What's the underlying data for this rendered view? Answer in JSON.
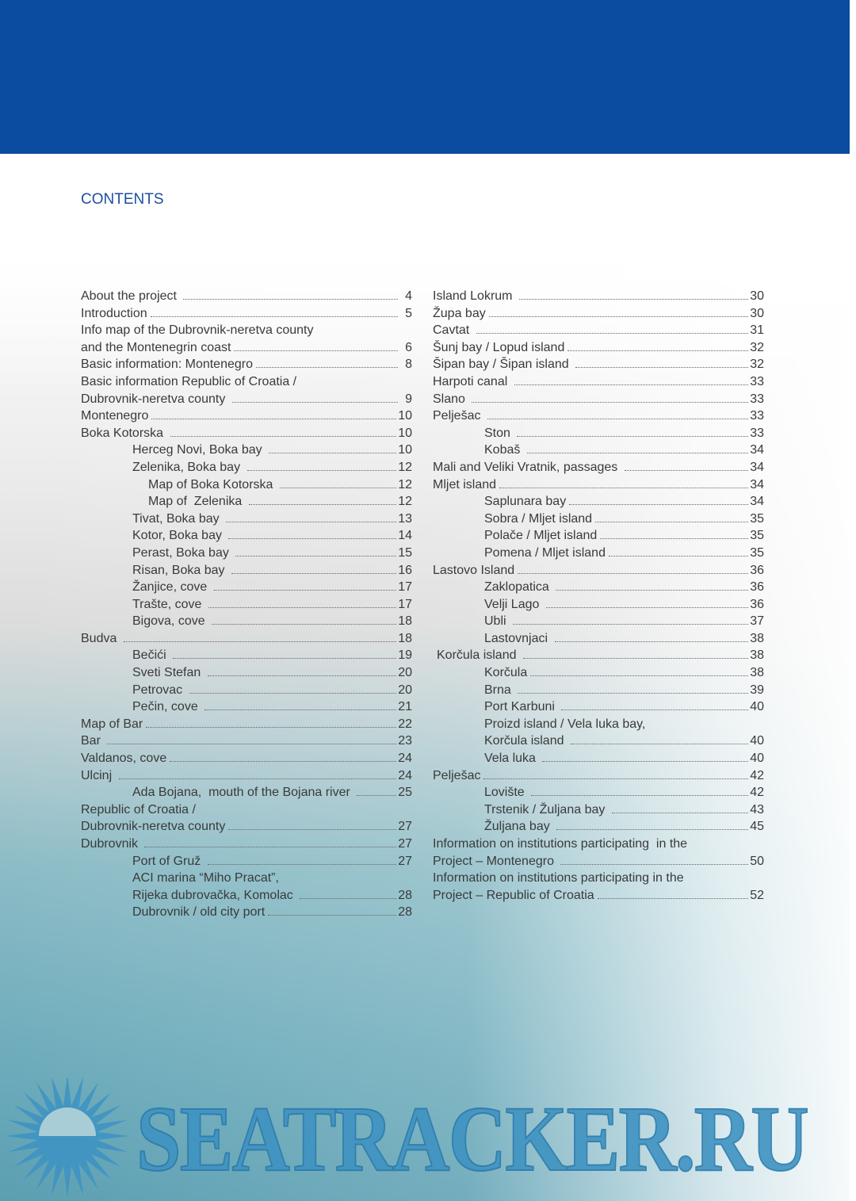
{
  "title": "CONTENTS",
  "logo_text": "SEATRACKER.RU",
  "colors": {
    "banner": "#0b4ca0",
    "title": "#1c4fa0",
    "logo": "#3f93c2"
  },
  "left": [
    {
      "label": "About the project ",
      "page": "4",
      "indent": 0
    },
    {
      "label": "Introduction",
      "page": "5",
      "indent": 0
    },
    {
      "label": "Info map of the Dubrovnik-neretva county",
      "page": null,
      "indent": 0
    },
    {
      "label": "and the Montenegrin coast",
      "page": "6",
      "indent": 0
    },
    {
      "label": "Basic information: Montenegro",
      "page": "8",
      "indent": 0
    },
    {
      "label": "Basic information Republic of Croatia /",
      "page": null,
      "indent": 0
    },
    {
      "label": "Dubrovnik-neretva county ",
      "page": "9",
      "indent": 0
    },
    {
      "label": "Montenegro",
      "page": "10",
      "indent": 0
    },
    {
      "label": "Boka Kotorska ",
      "page": "10",
      "indent": 0
    },
    {
      "label": "Herceg Novi, Boka bay ",
      "page": "10",
      "indent": 1
    },
    {
      "label": "Zelenika, Boka bay ",
      "page": "12",
      "indent": 1
    },
    {
      "label": "Map of Boka Kotorska ",
      "page": "12",
      "indent": 2
    },
    {
      "label": "Map of  Zelenika ",
      "page": "12",
      "indent": 2
    },
    {
      "label": "Tivat, Boka bay ",
      "page": "13",
      "indent": 1
    },
    {
      "label": "Kotor, Boka bay ",
      "page": "14",
      "indent": 1
    },
    {
      "label": "Perast, Boka bay ",
      "page": "15",
      "indent": 1
    },
    {
      "label": "Risan, Boka bay ",
      "page": "16",
      "indent": 1
    },
    {
      "label": "Žanjice, cove ",
      "page": "17",
      "indent": 1
    },
    {
      "label": "Trašte, cove ",
      "page": "17",
      "indent": 1
    },
    {
      "label": "Bigova, cove ",
      "page": "18",
      "indent": 1
    },
    {
      "label": "Budva ",
      "page": "18",
      "indent": 0
    },
    {
      "label": "Bečići ",
      "page": "19",
      "indent": 1
    },
    {
      "label": "Sveti Stefan ",
      "page": "20",
      "indent": 1
    },
    {
      "label": "Petrovac ",
      "page": "20",
      "indent": 1
    },
    {
      "label": "Pečin, cove ",
      "page": "21",
      "indent": 1
    },
    {
      "label": "Map of Bar",
      "page": "22",
      "indent": 0
    },
    {
      "label": "Bar ",
      "page": "23",
      "indent": 0
    },
    {
      "label": "Valdanos, cove",
      "page": "24",
      "indent": 0
    },
    {
      "label": "Ulcinj ",
      "page": "24",
      "indent": 0
    },
    {
      "label": "Ada Bojana,  mouth of the Bojana river ",
      "page": "25",
      "indent": 1
    },
    {
      "label": "Republic of Croatia /",
      "page": null,
      "indent": 0
    },
    {
      "label": "Dubrovnik-neretva county",
      "page": "27",
      "indent": 0
    },
    {
      "label": "Dubrovnik ",
      "page": "27",
      "indent": 0
    },
    {
      "label": "Port of Gruž ",
      "page": "27",
      "indent": 1
    },
    {
      "label": "ACI marina “Miho Pracat”,",
      "page": null,
      "indent": 1
    },
    {
      "label": "Rijeka dubrovačka, Komolac ",
      "page": "28",
      "indent": 1
    },
    {
      "label": "Dubrovnik / old city port",
      "page": "28",
      "indent": 1
    }
  ],
  "right": [
    {
      "label": "Island Lokrum ",
      "page": "30",
      "indent": 0
    },
    {
      "label": "Župa bay",
      "page": "30",
      "indent": 0
    },
    {
      "label": "Cavtat ",
      "page": "31",
      "indent": 0
    },
    {
      "label": "Šunj bay / Lopud island",
      "page": "32",
      "indent": 0
    },
    {
      "label": "Šipan bay / Šipan island ",
      "page": "32",
      "indent": 0
    },
    {
      "label": "Harpoti canal ",
      "page": "33",
      "indent": 0
    },
    {
      "label": "Slano ",
      "page": "33",
      "indent": 0
    },
    {
      "label": "Pelješac ",
      "page": "33",
      "indent": 0
    },
    {
      "label": "Ston ",
      "page": "33",
      "indent": 1
    },
    {
      "label": "Kobaš ",
      "page": "34",
      "indent": 1
    },
    {
      "label": "Mali and Veliki Vratnik, passages ",
      "page": "34",
      "indent": 0
    },
    {
      "label": "Mljet island",
      "page": "34",
      "indent": 0
    },
    {
      "label": "Saplunara bay",
      "page": "34",
      "indent": 1
    },
    {
      "label": "Sobra / Mljet island",
      "page": "35",
      "indent": 1
    },
    {
      "label": "Polače / Mljet island",
      "page": "35",
      "indent": 1
    },
    {
      "label": "Pomena / Mljet island",
      "page": "35",
      "indent": 1
    },
    {
      "label": "Lastovo Island",
      "page": "36",
      "indent": 0
    },
    {
      "label": "Zaklopatica ",
      "page": "36",
      "indent": 1
    },
    {
      "label": "Velji Lago ",
      "page": "36",
      "indent": 1
    },
    {
      "label": "Ubli ",
      "page": "37",
      "indent": 1
    },
    {
      "label": "Lastovnjaci ",
      "page": "38",
      "indent": 1
    },
    {
      "label": "Korčula island ",
      "page": "38",
      "indent": 0
    },
    {
      "label": "Korčula",
      "page": "38",
      "indent": 1
    },
    {
      "label": "Brna ",
      "page": "39",
      "indent": 1
    },
    {
      "label": "Port Karbuni ",
      "page": "40",
      "indent": 1
    },
    {
      "label": "Proizd island / Vela luka bay,",
      "page": null,
      "indent": 1
    },
    {
      "label": "Korčula island ",
      "page": "40",
      "indent": 1
    },
    {
      "label": "Vela luka ",
      "page": "40",
      "indent": 1
    },
    {
      "label": "Pelješac",
      "page": "42",
      "indent": 0
    },
    {
      "label": "Lovište ",
      "page": "42",
      "indent": 1
    },
    {
      "label": "Trstenik / Žuljana bay ",
      "page": "43",
      "indent": 1
    },
    {
      "label": "Žuljana bay ",
      "page": "45",
      "indent": 1
    },
    {
      "label": "Information on institutions participating  in the",
      "page": null,
      "indent": 0
    },
    {
      "label": "Project – Montenegro ",
      "page": "50",
      "indent": 0
    },
    {
      "label": "Information on institutions participating in the",
      "page": null,
      "indent": 0
    },
    {
      "label": "Project – Republic of Croatia",
      "page": "52",
      "indent": 0
    }
  ]
}
